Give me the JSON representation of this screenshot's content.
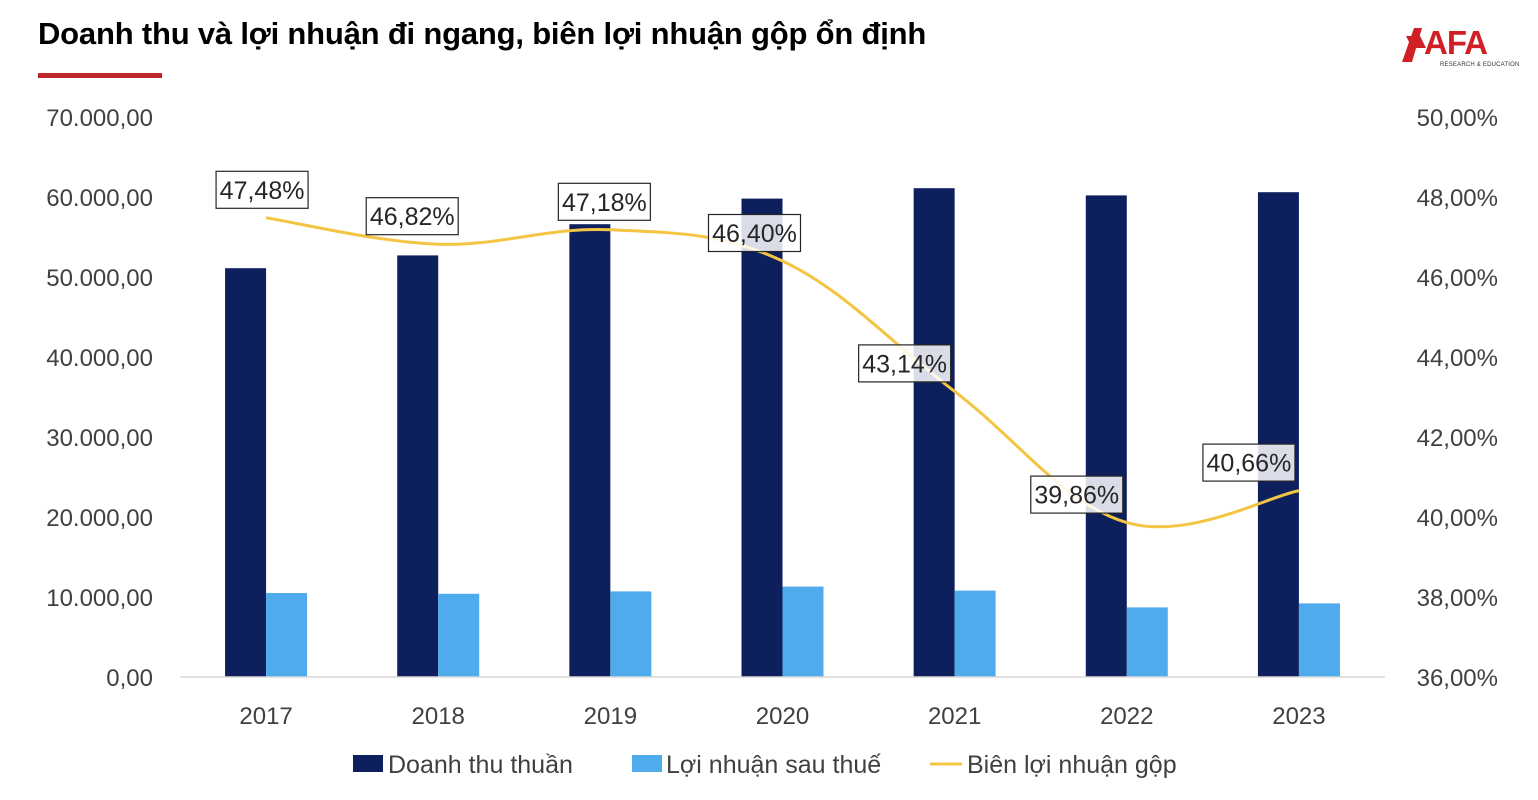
{
  "title": "Doanh thu và lợi nhuận đi ngang, biên lợi nhuận gộp ổn định",
  "logo": {
    "text": "AFA",
    "subtext": "RESEARCH & EDUCATION"
  },
  "colors": {
    "revenue": "#0d1f5c",
    "profit": "#4fabec",
    "margin": "#f4c542",
    "accent": "#c0272d"
  },
  "chart_data": {
    "type": "bar",
    "categories": [
      "2017",
      "2018",
      "2019",
      "2020",
      "2021",
      "2022",
      "2023"
    ],
    "series": [
      {
        "name": "Doanh thu thuần",
        "type": "bar",
        "axis": "left",
        "values": [
          51100,
          52700,
          56600,
          59800,
          61100,
          60200,
          60600
        ]
      },
      {
        "name": "Lợi nhuận sau thuế",
        "type": "bar",
        "axis": "left",
        "values": [
          10500,
          10400,
          10700,
          11300,
          10800,
          8700,
          9200
        ]
      },
      {
        "name": "Biên lợi nhuận gộp",
        "type": "line",
        "axis": "right",
        "values": [
          47.48,
          46.82,
          47.18,
          46.4,
          43.14,
          39.86,
          40.66
        ],
        "labels": [
          "47,48%",
          "46,82%",
          "47,18%",
          "46,40%",
          "43,14%",
          "39,86%",
          "40,66%"
        ]
      }
    ],
    "ylim_left": [
      0,
      70000
    ],
    "ylim_right": [
      36,
      50
    ],
    "left_ticks": [
      "0,00",
      "10.000,00",
      "20.000,00",
      "30.000,00",
      "40.000,00",
      "50.000,00",
      "60.000,00",
      "70.000,00"
    ],
    "right_ticks": [
      "36,00%",
      "38,00%",
      "40,00%",
      "42,00%",
      "44,00%",
      "46,00%",
      "48,00%",
      "50,00%"
    ],
    "legend_position": "bottom",
    "grid": false
  }
}
